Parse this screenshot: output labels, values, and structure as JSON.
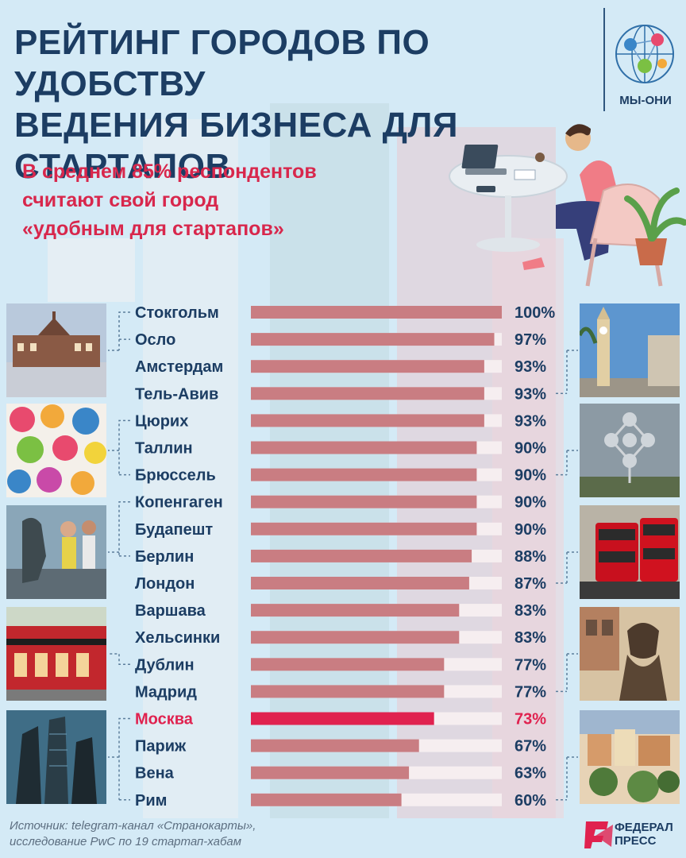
{
  "header": {
    "title_line1": "РЕЙТИНГ ГОРОДОВ ПО УДОБСТВУ",
    "title_line2": "ВЕДЕНИЯ БИЗНЕСА ДЛЯ СТАРТАПОВ",
    "brand_label": "МЫ-ОНИ"
  },
  "subtitle": {
    "line1": "В среднем 85% респондентов",
    "line2": "считают свой город",
    "line3": "«удобным для стартапов»"
  },
  "chart_data": {
    "type": "bar",
    "orientation": "horizontal",
    "categories": [
      "Стокгольм",
      "Осло",
      "Амстердам",
      "Тель-Авив",
      "Цюрих",
      "Таллин",
      "Брюссель",
      "Копенгаген",
      "Будапешт",
      "Берлин",
      "Лондон",
      "Варшава",
      "Хельсинки",
      "Дублин",
      "Мадрид",
      "Москва",
      "Париж",
      "Вена",
      "Рим"
    ],
    "values": [
      100,
      97,
      93,
      93,
      93,
      90,
      90,
      90,
      90,
      88,
      87,
      83,
      83,
      77,
      77,
      73,
      67,
      63,
      60
    ],
    "value_labels": [
      "100%",
      "97%",
      "93%",
      "93%",
      "93%",
      "90%",
      "90%",
      "90%",
      "90%",
      "88%",
      "87%",
      "83%",
      "83%",
      "77%",
      "77%",
      "73%",
      "67%",
      "63%",
      "60%"
    ],
    "highlight": "Москва",
    "xlim": [
      0,
      100
    ],
    "bar_color": "#c97d82",
    "highlight_color": "#e0224f",
    "track_color": "#f6eef0",
    "label_color": "#1c3d63"
  },
  "photos": {
    "left": [
      "stockholm-photo",
      "zurich-umbrellas-photo",
      "copenhagen-statue-photo",
      "dublin-temple-bar-photo",
      "moscow-city-photo"
    ],
    "right": [
      "tel-aviv-clocktower-photo",
      "brussels-atomium-photo",
      "london-buses-photo",
      "madrid-statue-photo",
      "rome-photo"
    ]
  },
  "footer": {
    "source_line1": "Источник: telegram-канал «Странокарты»,",
    "source_line2": "исследование PwC по 19 стартап-хабам",
    "logo_line1": "ФЕДЕРАЛ",
    "logo_line2": "ПРЕСС"
  },
  "colors": {
    "background": "#d4eaf6",
    "title": "#1c3d63",
    "accent": "#d8274c"
  }
}
